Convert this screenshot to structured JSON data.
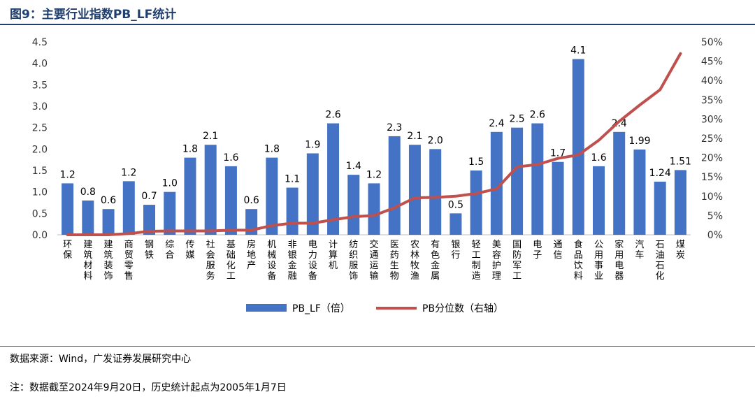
{
  "figure": {
    "title": "图9：主要行业指数PB_LF统计",
    "source": "数据来源：Wind，广发证券发展研究中心",
    "note": "注：数据截至2024年9月20日，历史统计起点为2005年1月7日"
  },
  "chart_data": {
    "type": "bar",
    "title": "",
    "categories": [
      "环保",
      "建筑材料",
      "建筑装饰",
      "商贸零售",
      "钢铁",
      "综合",
      "传媒",
      "社会服务",
      "基础化工",
      "房地产",
      "机械设备",
      "非银金融",
      "电力设备",
      "计算机",
      "纺织服饰",
      "交通运输",
      "医药生物",
      "农林牧渔",
      "有色金属",
      "银行",
      "轻工制造",
      "美容护理",
      "国防军工",
      "电子",
      "通信",
      "食品饮料",
      "公用事业",
      "家用电器",
      "汽车",
      "石油石化",
      "煤炭"
    ],
    "series": [
      {
        "name": "PB_LF（倍）",
        "type": "bar",
        "axis": "left",
        "color": "#4472c4",
        "values": [
          1.2,
          0.8,
          0.6,
          1.25,
          0.7,
          1.0,
          1.8,
          2.1,
          1.6,
          0.6,
          1.8,
          1.1,
          1.9,
          2.6,
          1.4,
          1.2,
          2.3,
          2.1,
          2.0,
          0.5,
          1.5,
          2.4,
          2.5,
          2.6,
          1.7,
          4.1,
          1.6,
          2.4,
          1.99,
          1.24,
          1.51
        ],
        "labels": [
          "1.2",
          "0.8",
          "0.6",
          "1.2",
          "0.7",
          "1.0",
          "1.8",
          "2.1",
          "1.6",
          "0.6",
          "1.8",
          "1.1",
          "1.9",
          "2.6",
          "1.4",
          "1.2",
          "2.3",
          "2.1",
          "2.0",
          "0.5",
          "1.5",
          "2.4",
          "2.5",
          "2.6",
          "1.7",
          "4.1",
          "1.6",
          "2.4",
          "1.99",
          "1.24",
          "1.51"
        ]
      },
      {
        "name": "PB分位数（右轴）",
        "type": "line",
        "axis": "right",
        "color": "#c0504d",
        "values": [
          0.0,
          0.0,
          0.0,
          0.3,
          0.9,
          1.0,
          1.0,
          1.0,
          1.2,
          1.2,
          2.4,
          3.0,
          3.0,
          3.9,
          4.7,
          5.0,
          7.0,
          9.6,
          9.7,
          10.0,
          10.7,
          11.9,
          17.6,
          18.2,
          19.8,
          20.7,
          24.5,
          29.4,
          33.6,
          37.6,
          47.0
        ]
      }
    ],
    "y_left": {
      "min": 0,
      "max": 4.5,
      "ticks": [
        "0.0",
        "0.5",
        "1.0",
        "1.5",
        "2.0",
        "2.5",
        "3.0",
        "3.5",
        "4.0",
        "4.5"
      ]
    },
    "y_right": {
      "min": 0,
      "max": 50,
      "ticks": [
        "0%",
        "5%",
        "10%",
        "15%",
        "20%",
        "25%",
        "30%",
        "35%",
        "40%",
        "45%",
        "50%"
      ]
    },
    "grid": false,
    "legend_position": "bottom-center"
  }
}
